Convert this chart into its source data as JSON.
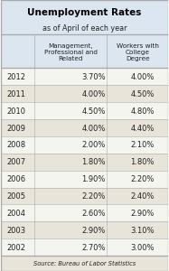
{
  "title_line1": "Unemployment Rates",
  "title_line2": "as of April of each year",
  "col_headers": [
    "",
    "Management,\nProfessional and\nRelated",
    "Workers with\nCollege\nDegree"
  ],
  "years": [
    "2012",
    "2011",
    "2010",
    "2009",
    "2008",
    "2007",
    "2006",
    "2005",
    "2004",
    "2003",
    "2002"
  ],
  "col1": [
    "3.70%",
    "4.00%",
    "4.50%",
    "4.00%",
    "2.00%",
    "1.80%",
    "1.90%",
    "2.20%",
    "2.60%",
    "2.90%",
    "2.70%"
  ],
  "col2": [
    "4.00%",
    "4.50%",
    "4.80%",
    "4.40%",
    "2.10%",
    "1.80%",
    "2.20%",
    "2.40%",
    "2.90%",
    "3.10%",
    "3.00%"
  ],
  "source": "Source: Bureau of Labor Statistics",
  "title_bg": "#dce6f1",
  "header_bg": "#dce6f1",
  "row_bg_alt": "#e8e4da",
  "row_bg_main": "#f5f5f0",
  "border_color": "#aaaaaa",
  "title_color": "#000000",
  "text_color": "#222222",
  "source_bg": "#e8e4da",
  "fig_bg": "#f5f5f0"
}
